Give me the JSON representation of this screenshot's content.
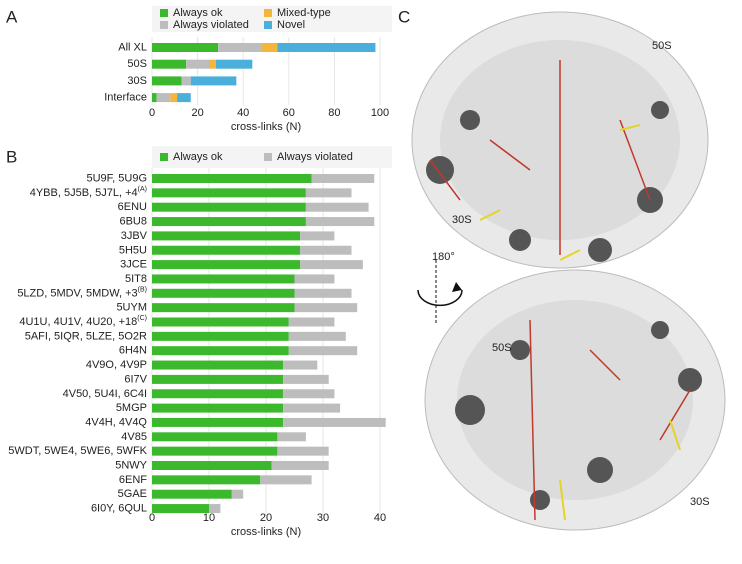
{
  "chart_data": [
    {
      "type": "stacked-hbar",
      "panel": "A",
      "categories": [
        "All XL",
        "50S",
        "30S",
        "Interface"
      ],
      "series": [
        {
          "name": "Always ok",
          "color": "#3cb82d",
          "values": [
            29,
            15,
            13,
            2
          ]
        },
        {
          "name": "Always violated",
          "color": "#bdbdbd",
          "values": [
            19,
            10,
            4,
            6
          ]
        },
        {
          "name": "Mixed-type",
          "color": "#f5b43c",
          "values": [
            7,
            3,
            0,
            3
          ]
        },
        {
          "name": "Novel",
          "color": "#4bafdc",
          "values": [
            43,
            16,
            20,
            6
          ]
        }
      ],
      "xlabel": "cross-links (N)",
      "xlim": [
        0,
        100
      ],
      "xticks": [
        0,
        20,
        40,
        60,
        80,
        100
      ],
      "grid": true
    },
    {
      "type": "stacked-hbar",
      "panel": "B",
      "categories": [
        "5U9F, 5U9G",
        "4YBB, 5J5B, 5J7L, +4",
        "6ENU",
        "6BU8",
        "3JBV",
        "5H5U",
        "3JCE",
        "5IT8",
        "5LZD, 5MDV, 5MDW, +3",
        "5UYM",
        "4U1U, 4U1V, 4U20, +18",
        "5AFI, 5IQR, 5LZE, 5O2R",
        "6H4N",
        "4V9O, 4V9P",
        "6I7V",
        "4V50, 5U4I, 6C4I",
        "5MGP",
        "4V4H, 4V4Q",
        "4V85",
        "5WDT, 5WE4, 5WE6, 5WFK",
        "5NWY",
        "6ENF",
        "5GAE",
        "6I0Y, 6QUL"
      ],
      "category_superscripts": [
        null,
        "(A)",
        null,
        null,
        null,
        null,
        null,
        null,
        "(B)",
        null,
        "(C)",
        null,
        null,
        null,
        null,
        null,
        null,
        null,
        null,
        null,
        null,
        null,
        null,
        null
      ],
      "series": [
        {
          "name": "Always ok",
          "color": "#3cb82d",
          "values": [
            28,
            27,
            27,
            27,
            26,
            26,
            26,
            25,
            25,
            25,
            24,
            24,
            24,
            23,
            23,
            23,
            23,
            23,
            22,
            22,
            21,
            19,
            14,
            10
          ]
        },
        {
          "name": "Always violated",
          "color": "#bdbdbd",
          "values": [
            11,
            8,
            11,
            12,
            6,
            9,
            11,
            7,
            10,
            11,
            8,
            10,
            12,
            6,
            8,
            9,
            10,
            18,
            5,
            9,
            10,
            9,
            2,
            2
          ]
        }
      ],
      "xlabel": "cross-links (N)",
      "xlim": [
        0,
        40
      ],
      "xticks": [
        0,
        10,
        20,
        30,
        40
      ],
      "grid": true
    }
  ],
  "panel_c": {
    "label": "C",
    "top_label": "50S",
    "top_sub_label": "30S",
    "rotation": "180°",
    "bottom_label": "50S",
    "bottom_sub_label": "30S"
  }
}
